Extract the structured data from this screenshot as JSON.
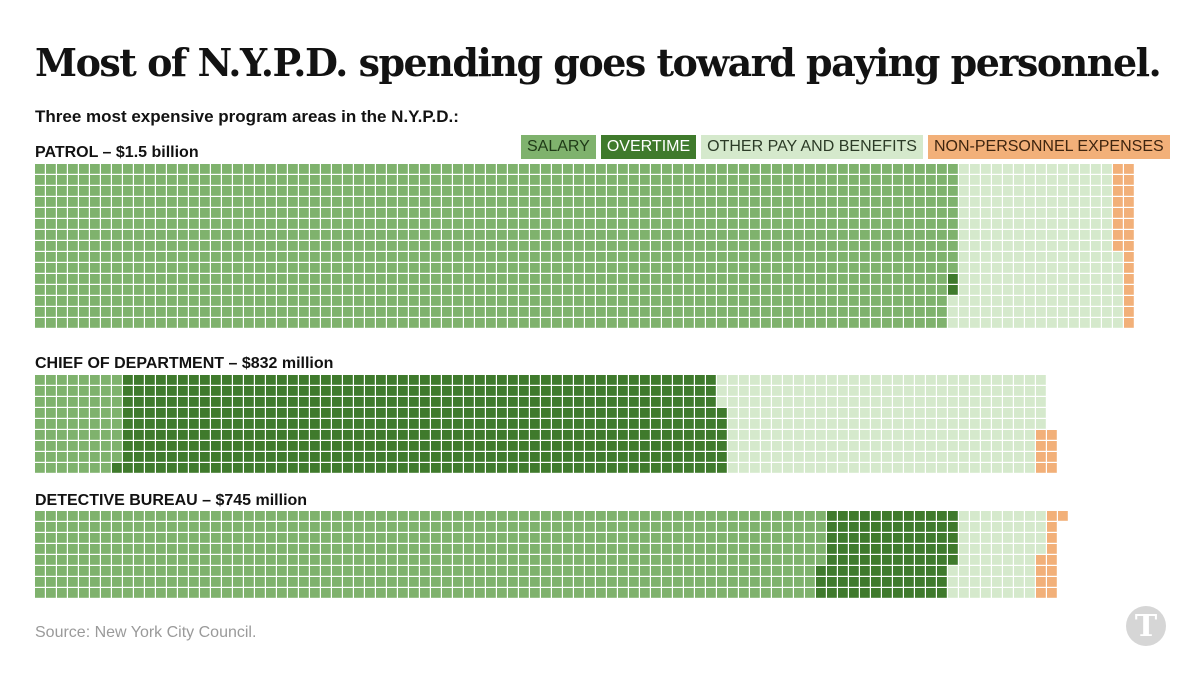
{
  "title": "Most of N.Y.P.D. spending goes toward paying personnel.",
  "subtitle": "Three most expensive program areas in the N.Y.P.D.:",
  "legend": [
    {
      "key": "salary",
      "label": "SALARY",
      "color": "#7fb26d"
    },
    {
      "key": "overtime",
      "label": "OVERTIME",
      "color": "#3f7a2c"
    },
    {
      "key": "other",
      "label": "OTHER PAY AND BENEFITS",
      "color": "#d5e9cc"
    },
    {
      "key": "nonpersonnel",
      "label": "NON-PERSONNEL EXPENSES",
      "color": "#f2b079"
    }
  ],
  "source": "Source:  New York City Council.",
  "logo_icon": "nyt-logo-icon",
  "chart_data": {
    "type": "waffle",
    "unit": "each square represents $1 million",
    "series_order": [
      "salary",
      "overtime",
      "other",
      "nonpersonnel"
    ],
    "programs": [
      {
        "label": "PATROL – $1.5 billion",
        "total_millions": 1500,
        "rows": 15,
        "values": {
          "salary": 1255,
          "overtime": 2,
          "other": 220,
          "nonpersonnel": 23
        }
      },
      {
        "label": "CHIEF OF DEPARTMENT – $832 million",
        "total_millions": 832,
        "rows": 9,
        "values": {
          "salary": 71,
          "overtime": 493,
          "other": 260,
          "nonpersonnel": 8
        }
      },
      {
        "label": "DETECTIVE BUREAU – $745 million",
        "total_millions": 745,
        "rows": 8,
        "values": {
          "salary": 573,
          "overtime": 96,
          "other": 63,
          "nonpersonnel": 13
        }
      }
    ]
  }
}
